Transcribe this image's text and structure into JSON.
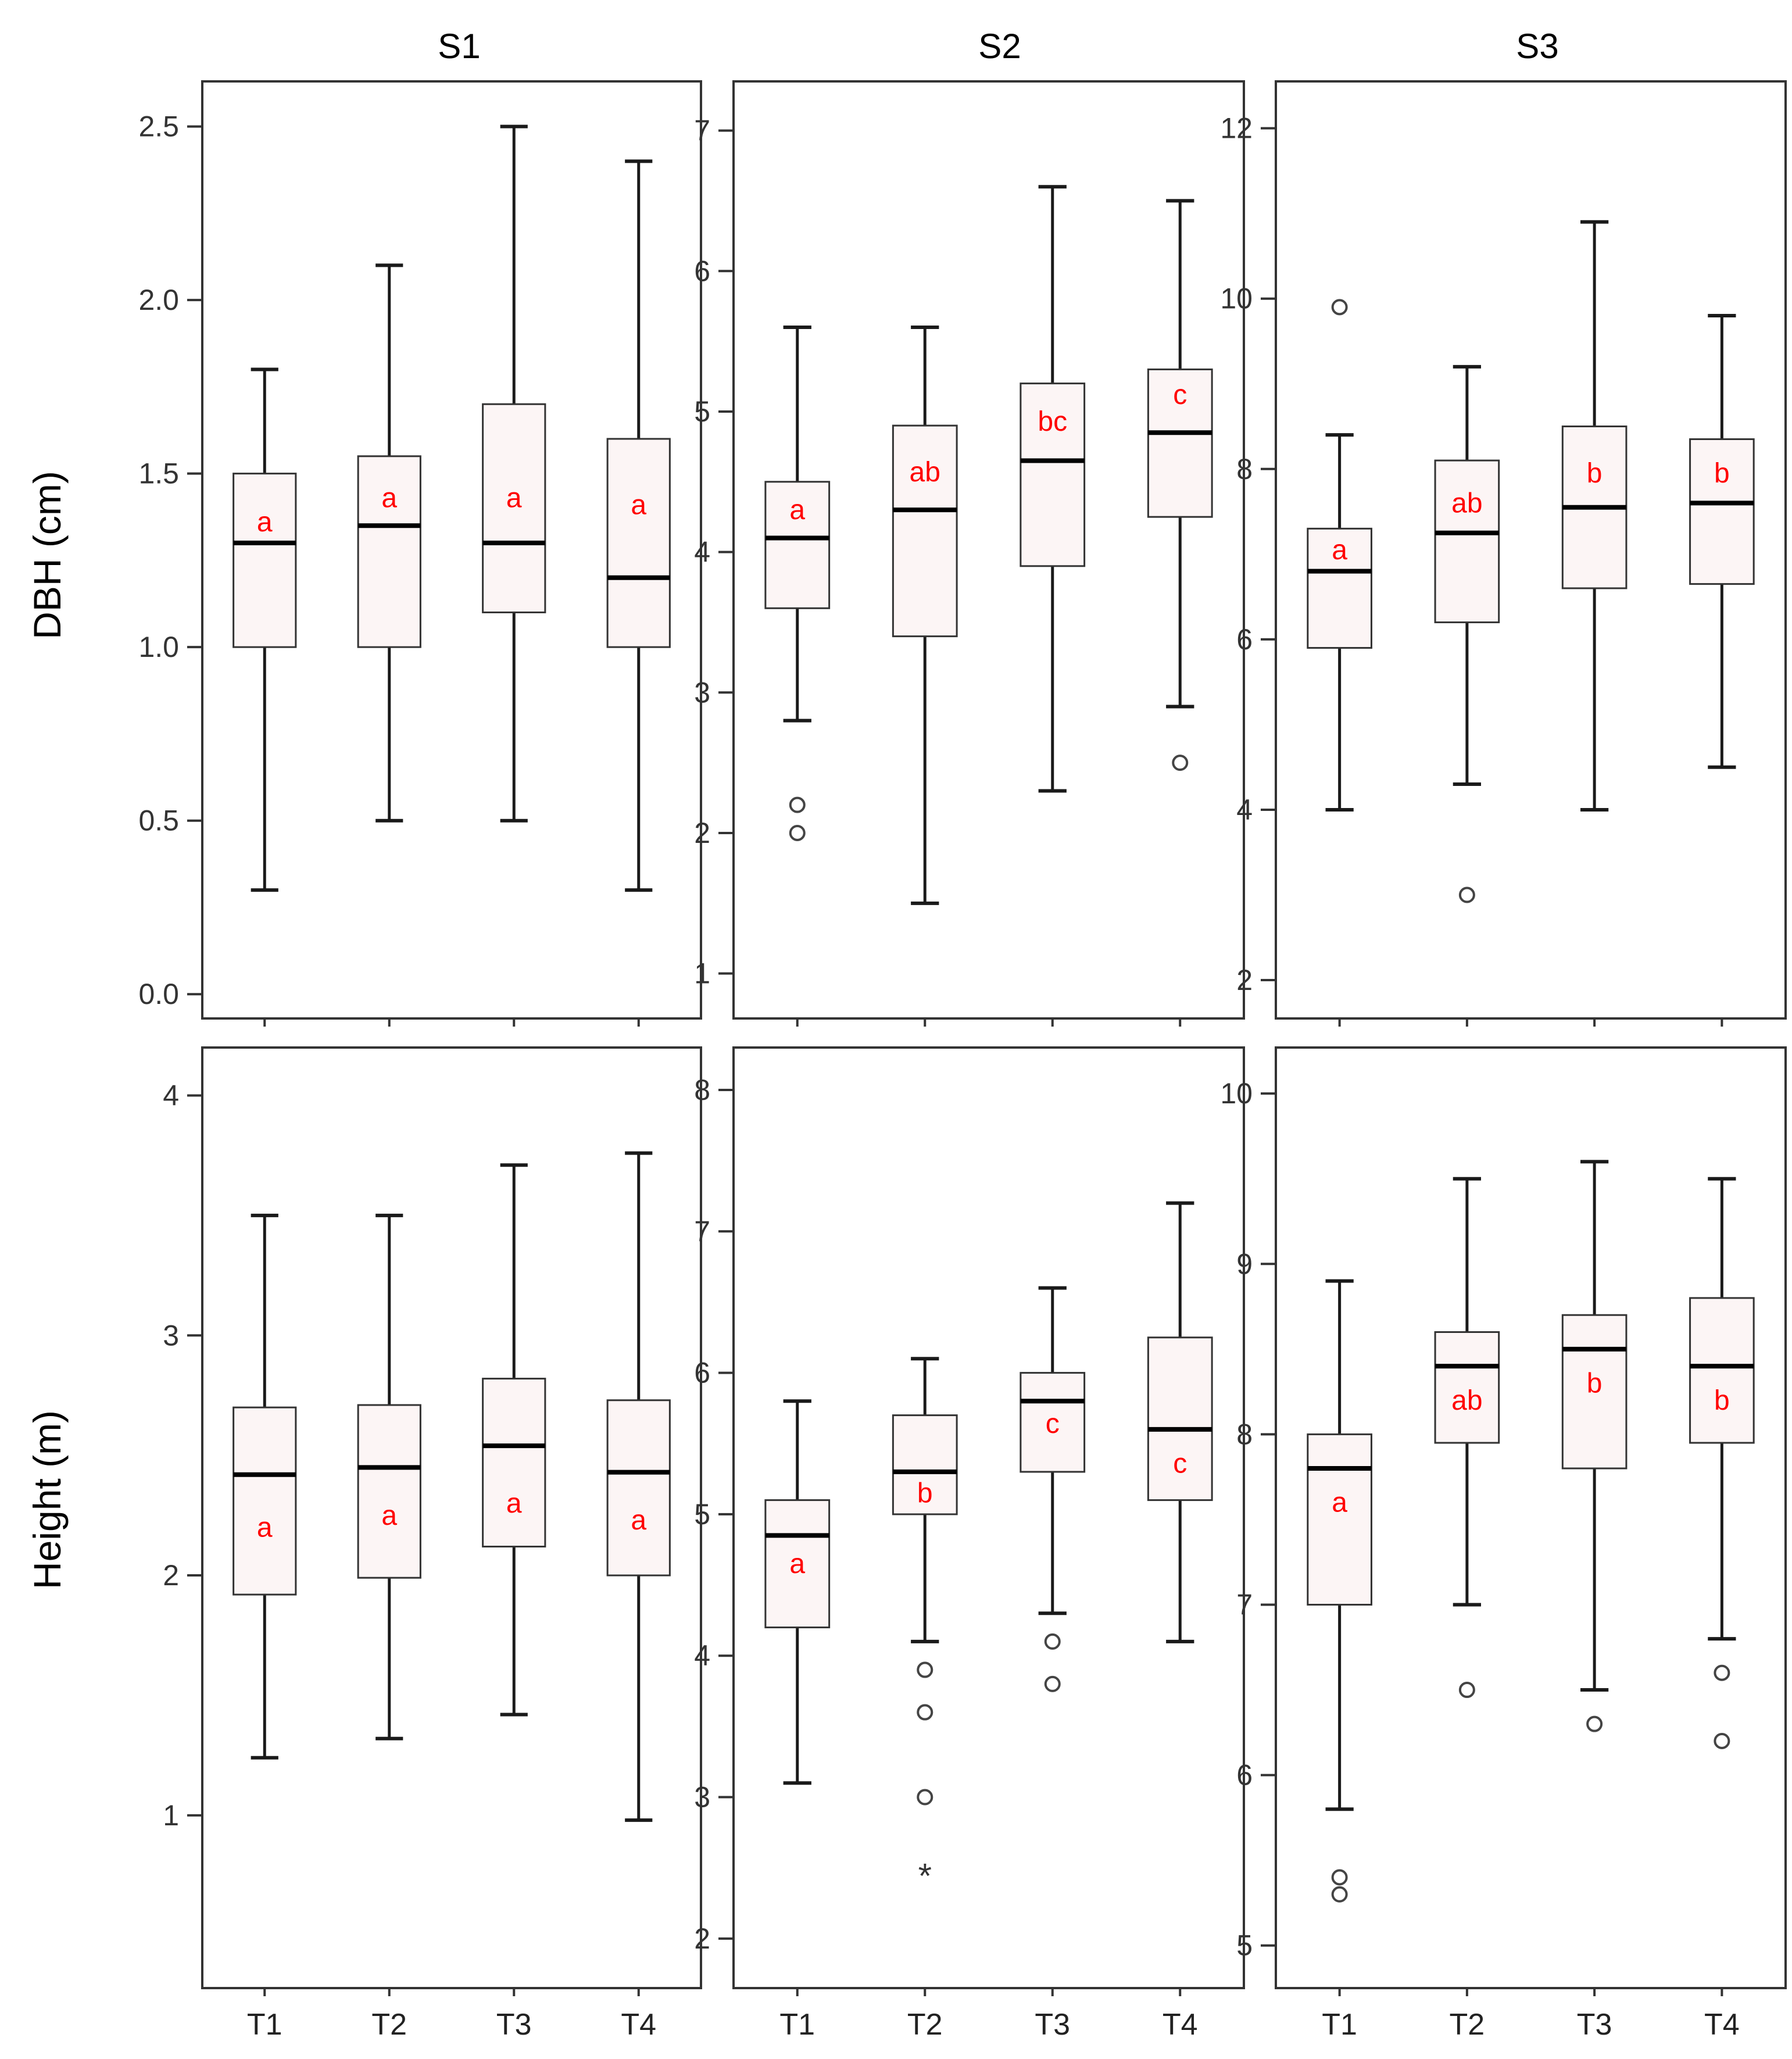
{
  "column_titles": [
    "S1",
    "S2",
    "S3"
  ],
  "row_titles": [
    "DBH (cm)",
    "Height (m)"
  ],
  "colors": {
    "box_fill": "#fcf5f5",
    "whisker": "#1a1a1a",
    "median": "#000000",
    "letters": "#ff0000",
    "frame": "#333333"
  },
  "chart_data": [
    {
      "type": "box",
      "panel": "DBH S1",
      "categories": [
        "T1",
        "T2",
        "T3",
        "T4"
      ],
      "ylim": [
        -0.07,
        2.63
      ],
      "ticks": [
        0.0,
        0.5,
        1.0,
        1.5,
        2.0,
        2.5
      ],
      "tick_labels": [
        "0.0",
        "0.5",
        "1.0",
        "1.5",
        "2.0",
        "2.5"
      ],
      "boxes": [
        {
          "min": 0.3,
          "q1": 1.0,
          "median": 1.3,
          "q3": 1.5,
          "max": 1.8,
          "outliers": [],
          "extremes": [],
          "letter": "a",
          "letter_y": 1.36
        },
        {
          "min": 0.5,
          "q1": 1.0,
          "median": 1.35,
          "q3": 1.55,
          "max": 2.1,
          "outliers": [],
          "extremes": [],
          "letter": "a",
          "letter_y": 1.43
        },
        {
          "min": 0.5,
          "q1": 1.1,
          "median": 1.3,
          "q3": 1.7,
          "max": 2.5,
          "outliers": [],
          "extremes": [],
          "letter": "a",
          "letter_y": 1.43
        },
        {
          "min": 0.3,
          "q1": 1.0,
          "median": 1.2,
          "q3": 1.6,
          "max": 2.4,
          "outliers": [],
          "extremes": [],
          "letter": "a",
          "letter_y": 1.41
        }
      ]
    },
    {
      "type": "box",
      "panel": "DBH S2",
      "categories": [
        "T1",
        "T2",
        "T3",
        "T4"
      ],
      "ylim": [
        0.68,
        7.35
      ],
      "ticks": [
        1,
        2,
        3,
        4,
        5,
        6,
        7
      ],
      "tick_labels": [
        "1",
        "2",
        "3",
        "4",
        "5",
        "6",
        "7"
      ],
      "boxes": [
        {
          "min": 2.8,
          "q1": 3.6,
          "median": 4.1,
          "q3": 4.5,
          "max": 5.6,
          "outliers": [
            2.2,
            2.0
          ],
          "extremes": [],
          "letter": "a",
          "letter_y": 4.3
        },
        {
          "min": 1.5,
          "q1": 3.4,
          "median": 4.3,
          "q3": 4.9,
          "max": 5.6,
          "outliers": [],
          "extremes": [],
          "letter": "ab",
          "letter_y": 4.57
        },
        {
          "min": 2.3,
          "q1": 3.9,
          "median": 4.65,
          "q3": 5.2,
          "max": 6.6,
          "outliers": [],
          "extremes": [],
          "letter": "bc",
          "letter_y": 4.93
        },
        {
          "min": 2.9,
          "q1": 4.25,
          "median": 4.85,
          "q3": 5.3,
          "max": 6.5,
          "outliers": [
            2.5
          ],
          "extremes": [],
          "letter": "c",
          "letter_y": 5.12
        }
      ]
    },
    {
      "type": "box",
      "panel": "DBH S3",
      "categories": [
        "T1",
        "T2",
        "T3",
        "T4"
      ],
      "ylim": [
        1.55,
        12.55
      ],
      "ticks": [
        2,
        4,
        6,
        8,
        10,
        12
      ],
      "tick_labels": [
        "2",
        "4",
        "6",
        "8",
        "10",
        "12"
      ],
      "boxes": [
        {
          "min": 4.0,
          "q1": 5.9,
          "median": 6.8,
          "q3": 7.3,
          "max": 8.4,
          "outliers": [
            9.9
          ],
          "extremes": [],
          "letter": "a",
          "letter_y": 7.05
        },
        {
          "min": 4.3,
          "q1": 6.2,
          "median": 7.25,
          "q3": 8.1,
          "max": 9.2,
          "outliers": [
            3.0
          ],
          "extremes": [],
          "letter": "ab",
          "letter_y": 7.6
        },
        {
          "min": 4.0,
          "q1": 6.6,
          "median": 7.55,
          "q3": 8.5,
          "max": 10.9,
          "outliers": [],
          "extremes": [],
          "letter": "b",
          "letter_y": 7.95
        },
        {
          "min": 4.5,
          "q1": 6.65,
          "median": 7.6,
          "q3": 8.35,
          "max": 9.8,
          "outliers": [],
          "extremes": [],
          "letter": "b",
          "letter_y": 7.95
        }
      ]
    },
    {
      "type": "box",
      "panel": "Height S1",
      "categories": [
        "T1",
        "T2",
        "T3",
        "T4"
      ],
      "ylim": [
        0.28,
        4.2
      ],
      "ticks": [
        1,
        2,
        3,
        4
      ],
      "tick_labels": [
        "1",
        "2",
        "3",
        "4"
      ],
      "boxes": [
        {
          "min": 1.24,
          "q1": 1.92,
          "median": 2.42,
          "q3": 2.7,
          "max": 3.5,
          "outliers": [],
          "extremes": [],
          "letter": "a",
          "letter_y": 2.2
        },
        {
          "min": 1.32,
          "q1": 1.99,
          "median": 2.45,
          "q3": 2.71,
          "max": 3.5,
          "outliers": [],
          "extremes": [],
          "letter": "a",
          "letter_y": 2.25
        },
        {
          "min": 1.42,
          "q1": 2.12,
          "median": 2.54,
          "q3": 2.82,
          "max": 3.71,
          "outliers": [],
          "extremes": [],
          "letter": "a",
          "letter_y": 2.3
        },
        {
          "min": 0.98,
          "q1": 2.0,
          "median": 2.43,
          "q3": 2.73,
          "max": 3.76,
          "outliers": [],
          "extremes": [],
          "letter": "a",
          "letter_y": 2.23
        }
      ]
    },
    {
      "type": "box",
      "panel": "Height S2",
      "categories": [
        "T1",
        "T2",
        "T3",
        "T4"
      ],
      "ylim": [
        1.65,
        8.3
      ],
      "ticks": [
        2,
        3,
        4,
        5,
        6,
        7,
        8
      ],
      "tick_labels": [
        "2",
        "3",
        "4",
        "5",
        "6",
        "7",
        "8"
      ],
      "boxes": [
        {
          "min": 3.1,
          "q1": 4.2,
          "median": 4.85,
          "q3": 5.1,
          "max": 5.8,
          "outliers": [],
          "extremes": [],
          "letter": "a",
          "letter_y": 4.65
        },
        {
          "min": 4.1,
          "q1": 5.0,
          "median": 5.3,
          "q3": 5.7,
          "max": 6.1,
          "outliers": [
            3.9,
            3.6,
            3.0
          ],
          "extremes": [
            2.45
          ],
          "letter": "b",
          "letter_y": 5.15
        },
        {
          "min": 4.3,
          "q1": 5.3,
          "median": 5.8,
          "q3": 6.0,
          "max": 6.6,
          "outliers": [
            4.1,
            3.8
          ],
          "extremes": [],
          "letter": "c",
          "letter_y": 5.64
        },
        {
          "min": 4.1,
          "q1": 5.1,
          "median": 5.6,
          "q3": 6.25,
          "max": 7.2,
          "outliers": [],
          "extremes": [],
          "letter": "c",
          "letter_y": 5.36
        }
      ]
    },
    {
      "type": "box",
      "panel": "Height S3",
      "categories": [
        "T1",
        "T2",
        "T3",
        "T4"
      ],
      "ylim": [
        4.75,
        10.27
      ],
      "ticks": [
        5,
        6,
        7,
        8,
        9,
        10
      ],
      "tick_labels": [
        "5",
        "6",
        "7",
        "8",
        "9",
        "10"
      ],
      "boxes": [
        {
          "min": 5.8,
          "q1": 7.0,
          "median": 7.8,
          "q3": 8.0,
          "max": 8.9,
          "outliers": [
            5.4,
            5.3
          ],
          "extremes": [],
          "letter": "a",
          "letter_y": 7.6
        },
        {
          "min": 7.0,
          "q1": 7.95,
          "median": 8.4,
          "q3": 8.6,
          "max": 9.5,
          "outliers": [
            6.5
          ],
          "extremes": [],
          "letter": "ab",
          "letter_y": 8.2
        },
        {
          "min": 6.5,
          "q1": 7.8,
          "median": 8.5,
          "q3": 8.7,
          "max": 9.6,
          "outliers": [
            6.3
          ],
          "extremes": [],
          "letter": "b",
          "letter_y": 8.3
        },
        {
          "min": 6.8,
          "q1": 7.95,
          "median": 8.4,
          "q3": 8.8,
          "max": 9.5,
          "outliers": [
            6.6,
            6.2
          ],
          "extremes": [],
          "letter": "b",
          "letter_y": 8.2
        }
      ]
    }
  ]
}
